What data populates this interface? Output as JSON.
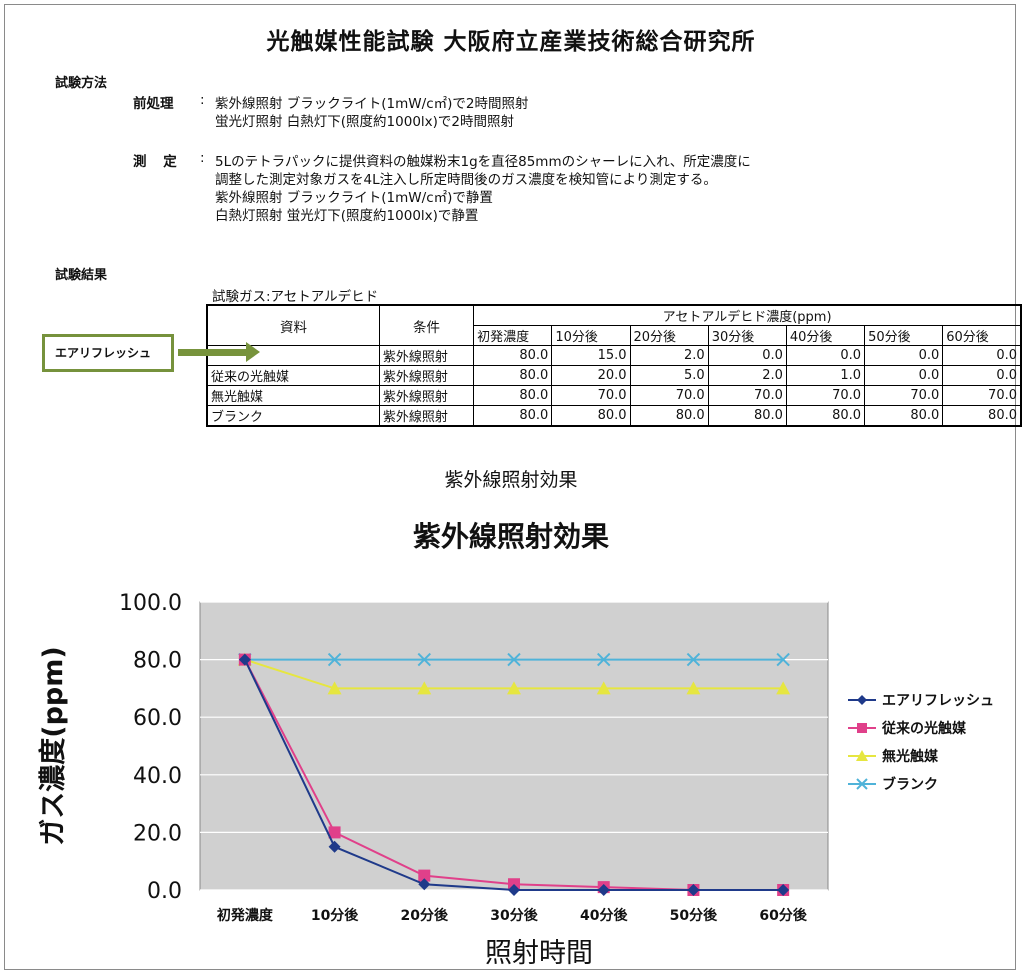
{
  "title": "光触媒性能試験 大阪府立産業技術総合研究所",
  "method": {
    "label": "試験方法",
    "pre_key": "前処理",
    "pre_lines": [
      "紫外線照射 ブラックライト(1mW/c㎡)で2時間照射",
      "蛍光灯照射 白熱灯下(照度約1000lx)で2時間照射"
    ],
    "measure_key": "測 定",
    "measure_lines": [
      "5Lのテトラパックに提供資料の触媒粉末1gを直径85mmのシャーレに入れ、所定濃度に",
      "調整した測定対象ガスを4L注入し所定時間後のガス濃度を検知管により測定する。",
      "紫外線照射 ブラックライト(1mW/c㎡)で静置",
      "白熱灯照射 蛍光灯下(照度約1000lx)で静置"
    ]
  },
  "results": {
    "label": "試験結果",
    "gas": "試験ガス:アセトアルデヒド",
    "table": {
      "col_material": "資料",
      "col_condition": "条件",
      "col_concentration": "アセトアルデヒド濃度(ppm)",
      "time_headers": [
        "初発濃度",
        "10分後",
        "20分後",
        "30分後",
        "40分後",
        "50分後",
        "60分後"
      ],
      "rows": [
        {
          "material": "",
          "condition": "紫外線照射",
          "values": [
            "80.0",
            "15.0",
            "2.0",
            "0.0",
            "0.0",
            "0.0",
            "0.0"
          ]
        },
        {
          "material": "従来の光触媒",
          "condition": "紫外線照射",
          "values": [
            "80.0",
            "20.0",
            "5.0",
            "2.0",
            "1.0",
            "0.0",
            "0.0"
          ]
        },
        {
          "material": "無光触媒",
          "condition": "紫外線照射",
          "values": [
            "80.0",
            "70.0",
            "70.0",
            "70.0",
            "70.0",
            "70.0",
            "70.0"
          ]
        },
        {
          "material": "ブランク",
          "condition": "紫外線照射",
          "values": [
            "80.0",
            "80.0",
            "80.0",
            "80.0",
            "80.0",
            "80.0",
            "80.0"
          ]
        }
      ]
    },
    "callout": "エアリフレッシュ"
  },
  "section_heading": "紫外線照射効果",
  "chart_data": {
    "type": "line",
    "title": "紫外線照射効果",
    "xlabel": "照射時間",
    "ylabel": "ガス濃度(ppm)",
    "ylim": [
      0,
      100
    ],
    "yticks": [
      "0.0",
      "20.0",
      "40.0",
      "60.0",
      "80.0",
      "100.0"
    ],
    "grid": true,
    "legend": "right",
    "categories": [
      "初発濃度",
      "10分後",
      "20分後",
      "30分後",
      "40分後",
      "50分後",
      "60分後"
    ],
    "series": [
      {
        "name": "エアリフレッシュ",
        "values": [
          80,
          15,
          2,
          0,
          0,
          0,
          0
        ],
        "color": "#1f3a8a",
        "marker": "diamond"
      },
      {
        "name": "従来の光触媒",
        "values": [
          80,
          20,
          5,
          2,
          1,
          0,
          0
        ],
        "color": "#e0408a",
        "marker": "square"
      },
      {
        "name": "無光触媒",
        "values": [
          80,
          70,
          70,
          70,
          70,
          70,
          70
        ],
        "color": "#e6e640",
        "marker": "triangle"
      },
      {
        "name": "ブランク",
        "values": [
          80,
          80,
          80,
          80,
          80,
          80,
          80
        ],
        "color": "#4fb3d9",
        "marker": "x"
      }
    ],
    "plot_background": "#d0d0d0"
  }
}
